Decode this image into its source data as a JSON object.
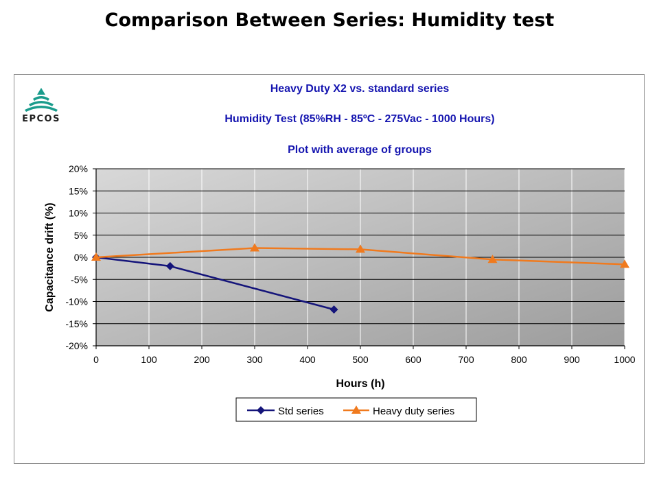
{
  "slide": {
    "title": "Comparison Between Series: Humidity test"
  },
  "logo": {
    "text": "EPCOS",
    "color": "#1a9c8c"
  },
  "chart_data": {
    "type": "line",
    "title": "Heavy Duty X2 vs. standard series",
    "subtitle": "Humidity Test  (85%RH  - 85ºC - 275Vac - 1000 Hours)",
    "subtitle2": "Plot with average of groups",
    "xlabel": "Hours (h)",
    "ylabel": "Capacitance drift (%)",
    "xlim": [
      0,
      1000
    ],
    "ylim": [
      -20,
      20
    ],
    "x_ticks": [
      0,
      100,
      200,
      300,
      400,
      500,
      600,
      700,
      800,
      900,
      1000
    ],
    "x_tick_labels": [
      "0",
      "100",
      "200",
      "300",
      "400",
      "500",
      "600",
      "700",
      "800",
      "900",
      "1000"
    ],
    "y_ticks": [
      20,
      15,
      10,
      5,
      0,
      -5,
      -10,
      -15,
      -20
    ],
    "y_tick_labels": [
      "20%",
      "15%",
      "10%",
      "5%",
      "0%",
      "-5%",
      "-10%",
      "-15%",
      "-20%"
    ],
    "grid": true,
    "legend_position": "bottom",
    "series": [
      {
        "name": "Std series",
        "color": "#14147a",
        "marker": "diamond",
        "x": [
          0,
          140,
          450
        ],
        "y": [
          0,
          -2,
          -11.8
        ]
      },
      {
        "name": "Heavy duty series",
        "color": "#f07a1e",
        "marker": "triangle",
        "x": [
          0,
          300,
          500,
          750,
          1000
        ],
        "y": [
          0,
          2.1,
          1.8,
          -0.5,
          -1.6
        ]
      }
    ]
  }
}
